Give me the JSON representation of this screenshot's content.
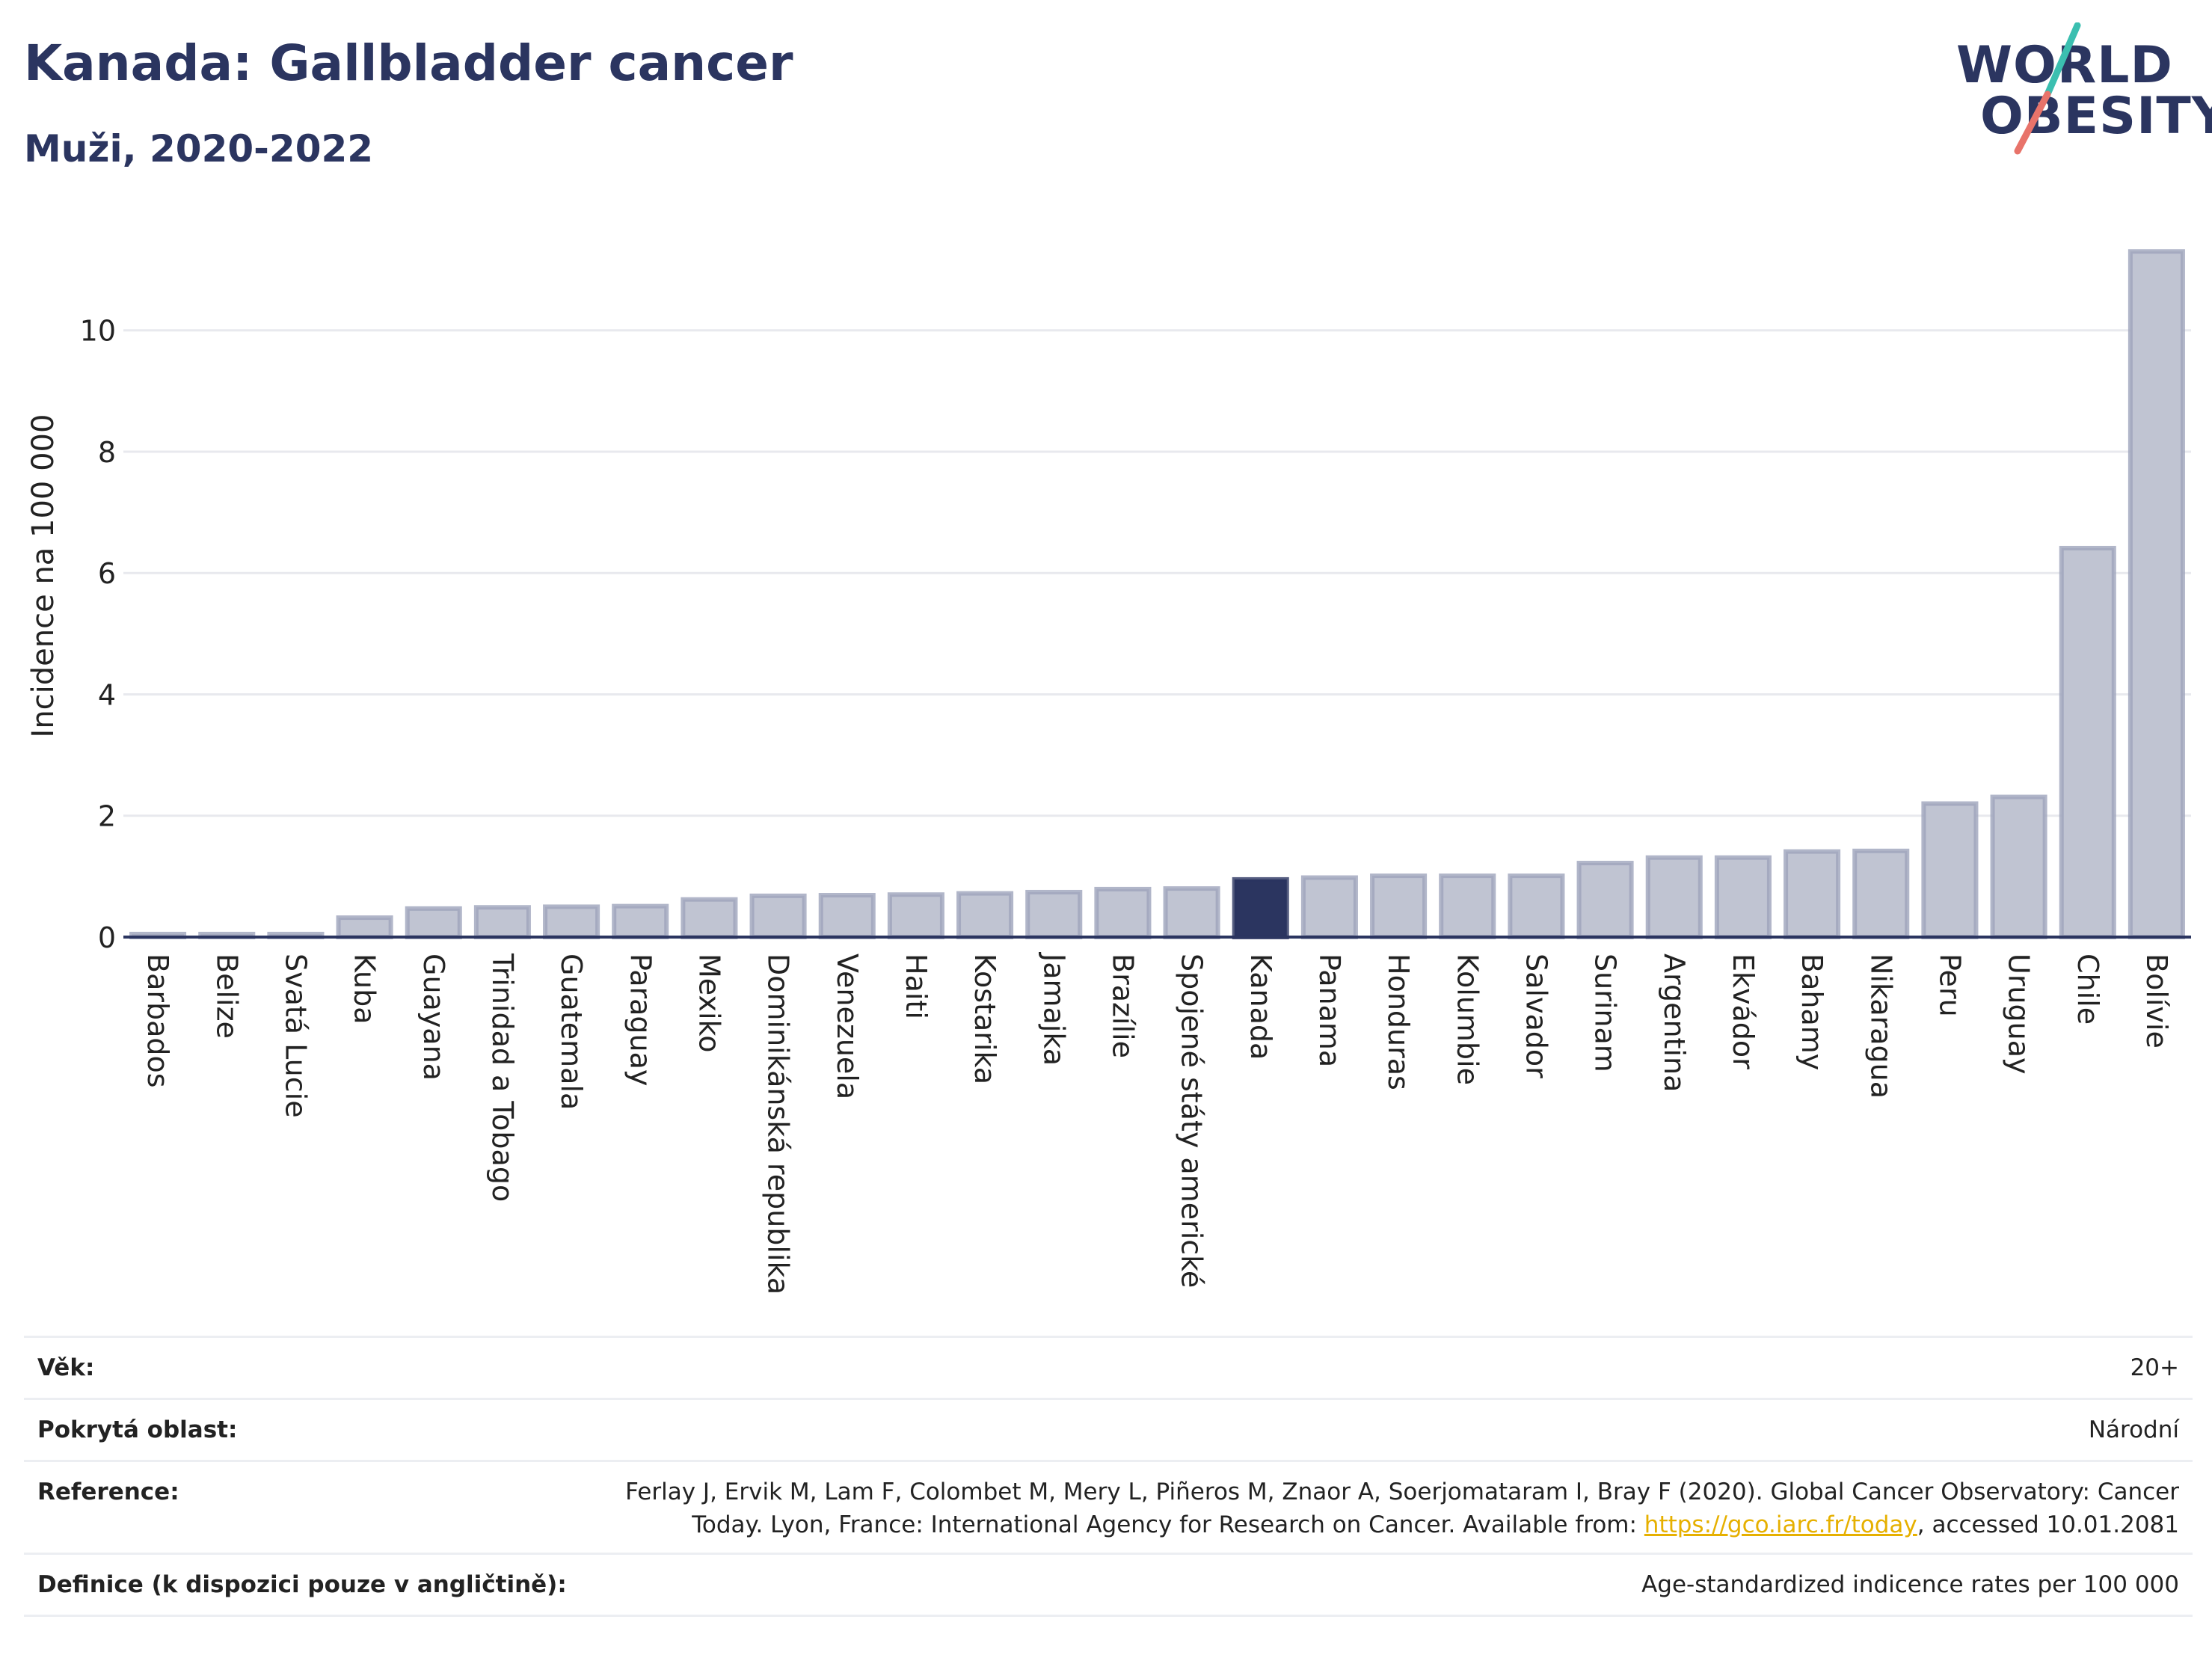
{
  "header": {
    "title": "Kanada: Gallbladder cancer",
    "subtitle": "Muži, 2020-2022"
  },
  "logo": {
    "line1": "WORLD",
    "line2": "OBESITY",
    "accent_teal": "#3bbfb0",
    "accent_coral": "#e8736a"
  },
  "colors": {
    "bar_default": "#c0c4d2",
    "bar_stroke": "#9ea4bb",
    "bar_highlight": "#2b3560",
    "axis": "#2b3560",
    "grid": "#e8e9ee"
  },
  "chart_data": {
    "type": "bar",
    "ylabel": "Incidence na 100 000",
    "ylim": [
      0,
      11.5
    ],
    "yticks": [
      0,
      2,
      4,
      6,
      8,
      10
    ],
    "grid": true,
    "highlight": "Kanada",
    "categories": [
      "Barbados",
      "Belize",
      "Svatá Lucie",
      "Kuba",
      "Guayana",
      "Trinidad a Tobago",
      "Guatemala",
      "Paraguay",
      "Mexiko",
      "Dominikánská republika",
      "Venezuela",
      "Haiti",
      "Kostarika",
      "Jamajka",
      "Brazílie",
      "Spojené státy americké",
      "Kanada",
      "Panama",
      "Honduras",
      "Kolumbie",
      "Salvador",
      "Surinam",
      "Argentina",
      "Ekvádor",
      "Bahamy",
      "Nikaragua",
      "Peru",
      "Uruguay",
      "Chile",
      "Bolívie"
    ],
    "values": [
      0.05,
      0.05,
      0.05,
      0.32,
      0.47,
      0.49,
      0.5,
      0.51,
      0.62,
      0.68,
      0.69,
      0.7,
      0.72,
      0.74,
      0.79,
      0.8,
      0.95,
      0.98,
      1.01,
      1.01,
      1.01,
      1.22,
      1.31,
      1.31,
      1.41,
      1.42,
      2.2,
      2.31,
      6.41,
      11.3
    ]
  },
  "info": {
    "rows": [
      {
        "label": "Věk:",
        "value": "20+"
      },
      {
        "label": "Pokrytá oblast:",
        "value": "Národní"
      },
      {
        "label": "Reference:",
        "value_line1": "Ferlay J, Ervik M, Lam F, Colombet M, Mery L, Piñeros M, Znaor A, Soerjomataram I, Bray F (2020). Global Cancer Observatory: Cancer",
        "value_line2_pre": "Today. Lyon, France: International Agency for Research on Cancer. Available from: ",
        "link": "https://gco.iarc.fr/today",
        "value_line2_post": ", accessed 10.01.2081"
      },
      {
        "label": "Definice (k dispozici pouze v angličtině):",
        "value": "Age-standardized indicence rates per 100 000"
      }
    ]
  }
}
